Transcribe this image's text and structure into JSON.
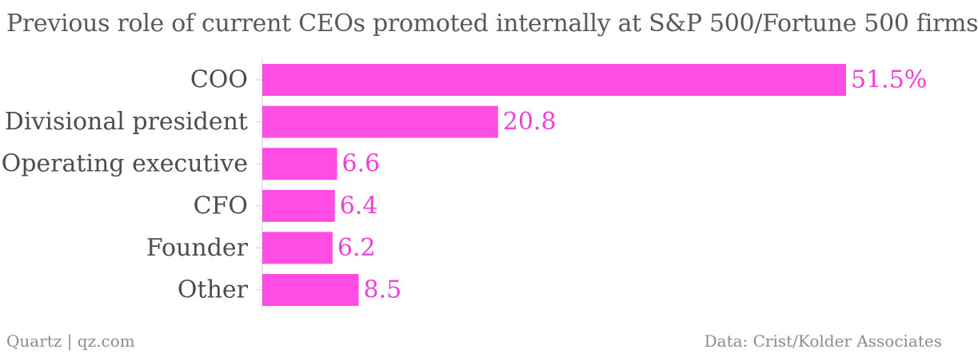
{
  "title": "Previous role of current CEOs promoted internally at S&P 500/Fortune 500 firms",
  "footer": {
    "source_left": "Quartz | qz.com",
    "source_right": "Data: Crist/Kolder Associates"
  },
  "colors": {
    "bar": "#ff4ce3",
    "value_label": "#f040d8",
    "category_label": "#4d4d4d",
    "axis": "#cccccc"
  },
  "chart_data": {
    "type": "bar",
    "orientation": "horizontal",
    "categories": [
      "COO",
      "Divisional president",
      "Operating executive",
      "CFO",
      "Founder",
      "Other"
    ],
    "values": [
      51.5,
      20.8,
      6.6,
      6.4,
      6.2,
      8.5
    ],
    "value_labels": [
      "51.5%",
      "20.8",
      "6.6",
      "6.4",
      "6.2",
      "8.5"
    ],
    "xlim": [
      0,
      51.5
    ]
  }
}
